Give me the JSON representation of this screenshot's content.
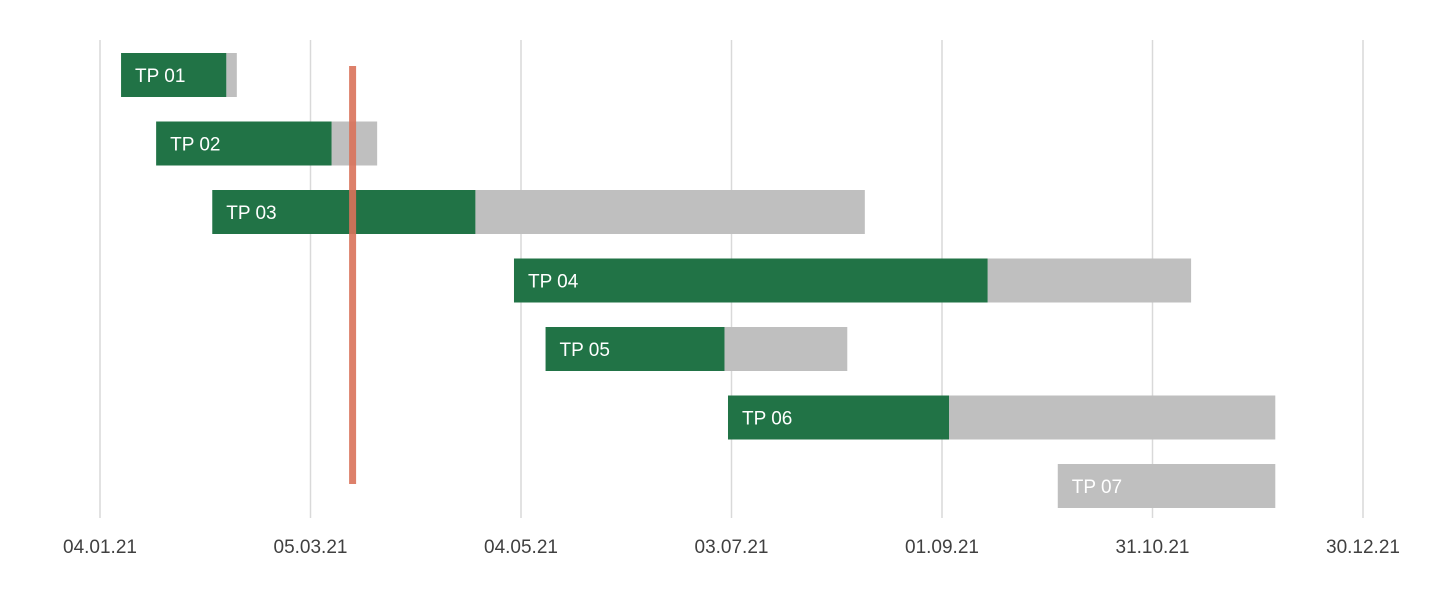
{
  "chart_data": {
    "type": "bar",
    "orientation": "horizontal",
    "stacked": true,
    "title": "",
    "xlabel": "",
    "ylabel": "",
    "grid": true,
    "x_ticks": [
      "04.01.21",
      "05.03.21",
      "04.05.21",
      "03.07.21",
      "01.09.21",
      "31.10.21",
      "30.12.21"
    ],
    "x_range": [
      "04.01.21",
      "30.12.21"
    ],
    "tasks": [
      {
        "label": "TP 01",
        "start": "10.01.21",
        "done_until": "09.02.21",
        "end": "12.02.21"
      },
      {
        "label": "TP 02",
        "start": "20.01.21",
        "done_until": "11.03.21",
        "end": "24.03.21"
      },
      {
        "label": "TP 03",
        "start": "05.02.21",
        "done_until": "21.04.21",
        "end": "10.08.21"
      },
      {
        "label": "TP 04",
        "start": "02.05.21",
        "done_until": "14.09.21",
        "end": "11.11.21"
      },
      {
        "label": "TP 05",
        "start": "11.05.21",
        "done_until": "01.07.21",
        "end": "05.08.21"
      },
      {
        "label": "TP 06",
        "start": "02.07.21",
        "done_until": "03.09.21",
        "end": "05.12.21"
      },
      {
        "label": "TP 07",
        "start": "04.10.21",
        "done_until": "04.10.21",
        "end": "05.12.21"
      }
    ],
    "today_marker": "17.03.21",
    "colors": {
      "done": "#217346",
      "remaining": "#bfbfbf",
      "today": "#d9725a",
      "grid": "#d9d9d9",
      "tick_text": "#404040",
      "bar_text": "#ffffff"
    }
  }
}
